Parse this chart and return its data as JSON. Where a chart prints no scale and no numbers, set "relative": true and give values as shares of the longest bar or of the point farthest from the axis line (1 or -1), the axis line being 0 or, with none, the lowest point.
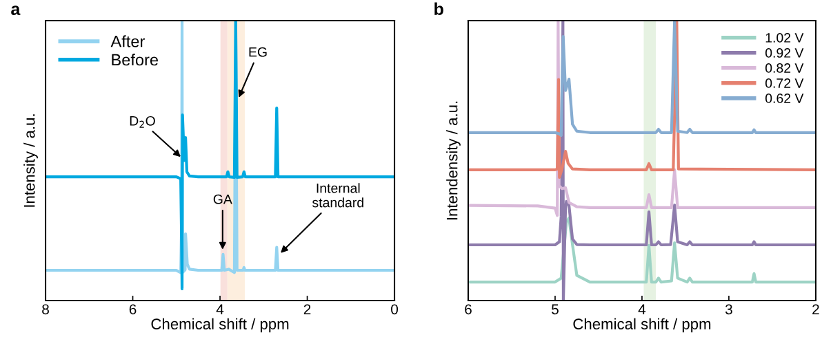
{
  "chart_data": [
    {
      "type": "line",
      "title": "a",
      "xlabel": "Chemical shift / ppm",
      "ylabel": "Intensity / a.u.",
      "relative": true,
      "xlim": [
        8,
        0
      ],
      "xticks": [
        8,
        6,
        4,
        2,
        0
      ],
      "tick_labels": "x",
      "legend": "top left",
      "grid": false,
      "marker": "none",
      "line_style": "solid",
      "bands": [
        {
          "axis": "x",
          "from": 3.99,
          "to": 3.83,
          "color": "#f9e0dc"
        },
        {
          "axis": "x",
          "from": 3.83,
          "to": 3.43,
          "color": "#fdeede"
        }
      ],
      "annotations": [
        {
          "text": "D$_{2}$O",
          "x": 4.9,
          "y": 0.513
        },
        {
          "text": "EG",
          "x": 3.57,
          "y": 0.725
        },
        {
          "text": "GA",
          "x": 3.94,
          "y": 0.182
        },
        {
          "text": "Internal\nstandard",
          "x": 2.61,
          "y": 0.17
        }
      ],
      "series": [
        {
          "name": "After",
          "color": "#93d3f0",
          "x": [
            8,
            5.0,
            4.9,
            4.88,
            4.87,
            4.86,
            4.8,
            4.79,
            4.75,
            4.7,
            4.5,
            3.96,
            3.93,
            3.9,
            3.8,
            3.67,
            3.64,
            3.61,
            3.47,
            3.45,
            3.43,
            2.73,
            2.7,
            2.67,
            0
          ],
          "values": [
            0.108,
            0.108,
            0.1,
            0.3,
            1.0,
            0.1,
            0.11,
            0.238,
            0.13,
            0.112,
            0.108,
            0.108,
            0.165,
            0.108,
            0.112,
            0.1,
            1.0,
            0.108,
            0.108,
            0.118,
            0.108,
            0.108,
            0.19,
            0.108,
            0.108
          ]
        },
        {
          "name": "Before",
          "color": "#00a9e0",
          "x": [
            8,
            5.0,
            4.9,
            4.88,
            4.87,
            4.86,
            4.82,
            4.8,
            4.79,
            4.76,
            4.7,
            4.5,
            3.85,
            3.82,
            3.79,
            3.67,
            3.64,
            3.61,
            3.48,
            3.45,
            3.42,
            2.73,
            2.7,
            2.67,
            0
          ],
          "values": [
            0.442,
            0.442,
            0.435,
            0.2,
            0.042,
            0.663,
            0.5,
            0.55,
            0.582,
            0.46,
            0.445,
            0.442,
            0.442,
            0.46,
            0.442,
            0.44,
            1.0,
            0.44,
            0.442,
            0.46,
            0.442,
            0.442,
            0.688,
            0.442,
            0.442
          ]
        }
      ]
    },
    {
      "type": "line",
      "title": "b",
      "xlabel": "Chemical shift / ppm",
      "ylabel": "Intendensity / a.u.",
      "relative": true,
      "xlim": [
        6,
        2
      ],
      "xticks": [
        6,
        5,
        4,
        3,
        2
      ],
      "tick_labels": "x",
      "legend": "top right",
      "grid": false,
      "marker": "none",
      "line_style": "solid",
      "bands": [
        {
          "axis": "x",
          "from": 3.98,
          "to": 3.84,
          "color": "#e6f2e2"
        }
      ],
      "series": [
        {
          "name": "1.02 V",
          "color": "#9dd3c5",
          "x": [
            6,
            5.0,
            4.93,
            4.87,
            4.84,
            4.8,
            4.75,
            4.6,
            3.95,
            3.92,
            3.89,
            3.84,
            3.81,
            3.78,
            3.66,
            3.625,
            3.59,
            3.48,
            3.45,
            3.42,
            2.73,
            2.71,
            2.69,
            2
          ],
          "values": [
            0.066,
            0.066,
            0.08,
            0.28,
            0.295,
            0.2,
            0.09,
            0.066,
            0.066,
            0.197,
            0.066,
            0.066,
            0.08,
            0.066,
            0.07,
            0.206,
            0.08,
            0.066,
            0.08,
            0.066,
            0.066,
            0.096,
            0.066,
            0.066
          ]
        },
        {
          "name": "0.92 V",
          "color": "#8e7cac",
          "x": [
            6,
            5.0,
            4.95,
            4.93,
            4.91,
            4.905,
            4.88,
            4.87,
            4.84,
            4.8,
            4.75,
            4.6,
            3.95,
            3.92,
            3.89,
            3.84,
            3.81,
            3.78,
            3.67,
            3.625,
            3.59,
            3.48,
            3.45,
            3.42,
            2.73,
            2.71,
            2.69,
            2
          ],
          "values": [
            0.199,
            0.199,
            0.21,
            0.3,
            1.0,
            0.0,
            0.33,
            0.354,
            0.34,
            0.22,
            0.2,
            0.199,
            0.199,
            0.317,
            0.199,
            0.199,
            0.21,
            0.199,
            0.2,
            0.341,
            0.21,
            0.199,
            0.21,
            0.199,
            0.199,
            0.21,
            0.199,
            0.199
          ]
        },
        {
          "name": "0.82 V",
          "color": "#d9b9d9",
          "x": [
            6,
            5.2,
            5.0,
            4.975,
            4.965,
            4.955,
            4.92,
            4.88,
            4.84,
            4.75,
            4.6,
            3.95,
            3.92,
            3.89,
            3.66,
            3.625,
            3.59,
            2
          ],
          "values": [
            0.34,
            0.338,
            0.33,
            0.304,
            1.0,
            0.41,
            0.4,
            0.403,
            0.35,
            0.335,
            0.332,
            0.332,
            0.378,
            0.332,
            0.332,
            0.467,
            0.332,
            0.332
          ]
        },
        {
          "name": "0.72 V",
          "color": "#e5806f",
          "x": [
            6,
            5.0,
            4.975,
            4.96,
            4.95,
            4.92,
            4.88,
            4.85,
            4.8,
            4.6,
            3.95,
            3.92,
            3.89,
            3.64,
            3.6,
            3.58,
            2
          ],
          "values": [
            0.467,
            0.467,
            0.47,
            0.79,
            0.44,
            0.47,
            0.533,
            0.49,
            0.47,
            0.467,
            0.467,
            0.489,
            0.467,
            0.467,
            1.0,
            0.47,
            0.467
          ]
        },
        {
          "name": "0.62 V",
          "color": "#86acd1",
          "x": [
            6,
            5.0,
            4.95,
            4.93,
            4.907,
            4.88,
            4.84,
            4.8,
            4.75,
            4.6,
            3.84,
            3.81,
            3.78,
            3.66,
            3.625,
            3.59,
            3.48,
            3.45,
            3.42,
            2.73,
            2.71,
            2.69,
            2
          ],
          "values": [
            0.6,
            0.6,
            0.595,
            0.59,
            0.943,
            0.75,
            0.791,
            0.63,
            0.605,
            0.6,
            0.6,
            0.612,
            0.6,
            0.6,
            1.0,
            0.605,
            0.6,
            0.612,
            0.6,
            0.6,
            0.61,
            0.6,
            0.6
          ]
        }
      ]
    }
  ]
}
